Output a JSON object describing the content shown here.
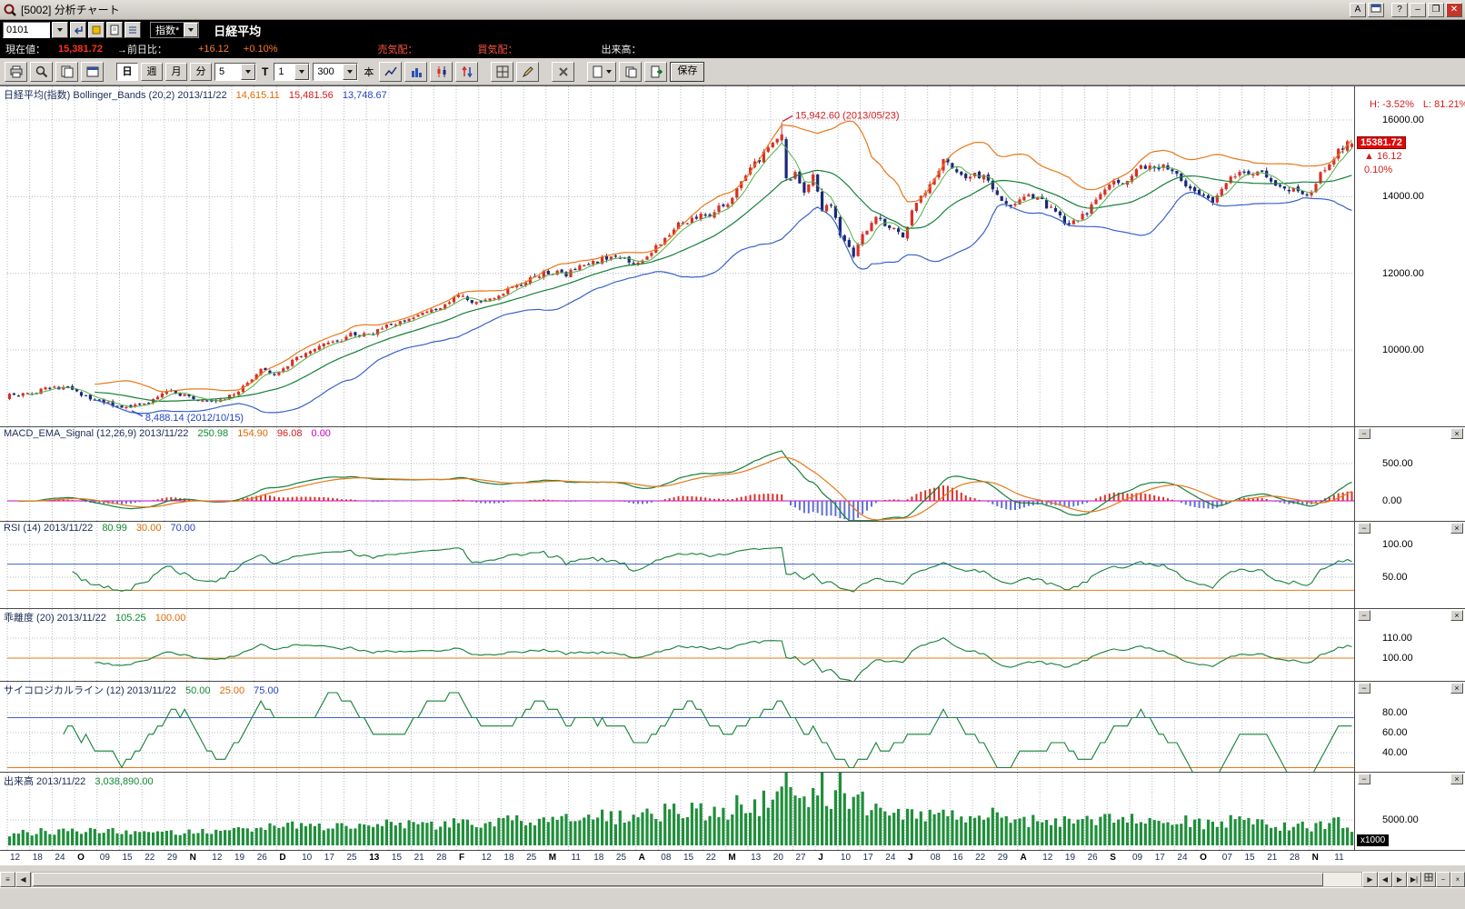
{
  "window": {
    "title": "[5002] 分析チャート",
    "btn_a": "A",
    "btn_help": "?",
    "btn_min": "–",
    "btn_max": "❐",
    "btn_close": "✕"
  },
  "icons": {
    "dropdown": "▼",
    "collapse": "−",
    "close_box": "×",
    "up_triangle": "▲",
    "scroll_left": "◀",
    "scroll_right": "▶",
    "scroll_end": "▶|",
    "grip": "≡"
  },
  "toolbar": {
    "code_value": "0101",
    "index_select": "指数*",
    "symbol": "日経平均"
  },
  "quote": {
    "label_current": "現在値：",
    "current": "15,381.72",
    "label_change": "→前日比：",
    "change": "+16.12",
    "change_pct": "+0.10%",
    "label_ask": "売気配：",
    "label_bid": "買気配：",
    "label_vol": "出来高："
  },
  "chartbar": {
    "tabs": [
      "日",
      "週",
      "月",
      "分"
    ],
    "sel_freq": "5",
    "t_label": "T",
    "sel_unit": "1",
    "sel_bars": "300",
    "bars_label": "本",
    "save_label": "保存"
  },
  "panels": {
    "main": {
      "title": "日経平均(指数) Bollinger_Bands (20,2) 2013/11/22",
      "v1": "14,615.11",
      "v2": "15,481.56",
      "v3": "13,748.67",
      "h_label": "H: -3.52%",
      "l_label": "L: 81.21%",
      "ann_high": "15,942.60 (2013/05/23)",
      "ann_low": "8,488.14 (2012/10/15)",
      "badge_price": "15381.72",
      "badge_change": "16.12",
      "badge_pct": "0.10%",
      "ticks": [
        [
          16000,
          "16000.00"
        ],
        [
          14000,
          "14000.00"
        ],
        [
          12000,
          "12000.00"
        ],
        [
          10000,
          "10000.00"
        ]
      ]
    },
    "macd": {
      "title": "MACD_EMA_Signal (12,26,9) 2013/11/22",
      "v1": "250.98",
      "v2": "154.90",
      "v3": "96.08",
      "v4": "0.00",
      "ticks": [
        [
          500,
          "500.00"
        ],
        [
          0,
          "0.00"
        ]
      ]
    },
    "rsi": {
      "title": "RSI (14) 2013/11/22",
      "v1": "80.99",
      "v2": "30.00",
      "v3": "70.00",
      "ticks": [
        [
          100,
          "100.00"
        ],
        [
          50,
          "50.00"
        ]
      ]
    },
    "kairi": {
      "title": "乖離度 (20) 2013/11/22",
      "v1": "105.25",
      "v2": "100.00",
      "ticks": [
        [
          110,
          "110.00"
        ],
        [
          100,
          "100.00"
        ]
      ]
    },
    "psycho": {
      "title": "サイコロジカルライン (12) 2013/11/22",
      "v1": "50.00",
      "v2": "25.00",
      "v3": "75.00",
      "ticks": [
        [
          80,
          "80.00"
        ],
        [
          60,
          "60.00"
        ],
        [
          40,
          "40.00"
        ]
      ]
    },
    "volume": {
      "title": "出来高 2013/11/22",
      "v1": "3,038,890.00",
      "x1000": "x1000",
      "ticks": [
        [
          5000,
          "5000.00"
        ]
      ]
    }
  },
  "chart_data": {
    "type": "candlestick+indicators",
    "instrument": "日経平均 (Nikkei 225 index)",
    "date_range": "2012/09 - 2013/11/22",
    "bars": 300,
    "last": {
      "close": 15381.72,
      "change": 16.12,
      "change_pct": 0.1
    },
    "high_annotation": {
      "bar": 172,
      "price": 15942.6,
      "date": "2013/05/23"
    },
    "low_annotation": {
      "bar": 27,
      "price": 8488.14,
      "date": "2012/10/15"
    },
    "indicators": {
      "bollinger": {
        "period": 20,
        "dev": 2,
        "last_mid": 14615.11,
        "last_upper": 15481.56,
        "last_lower": 13748.67
      },
      "macd": {
        "fast": 12,
        "slow": 26,
        "signal": 9,
        "last_macd": 250.98,
        "last_signal": 154.9,
        "last_hist": 96.08,
        "zero": 0.0
      },
      "rsi": {
        "period": 14,
        "last": 80.99,
        "level_low": 30.0,
        "level_high": 70.0
      },
      "kairi": {
        "period": 20,
        "last": 105.25,
        "level": 100.0
      },
      "psychological": {
        "period": 12,
        "last": 50.0,
        "level_low": 25.0,
        "level_high": 75.0
      },
      "volume_last_x1000": 3038890.0
    },
    "close_anchors": [
      [
        0,
        8810
      ],
      [
        5,
        8880
      ],
      [
        10,
        9050
      ],
      [
        14,
        8960
      ],
      [
        18,
        8720
      ],
      [
        22,
        8600
      ],
      [
        27,
        8490
      ],
      [
        32,
        8720
      ],
      [
        36,
        8950
      ],
      [
        40,
        8740
      ],
      [
        44,
        8620
      ],
      [
        48,
        8700
      ],
      [
        52,
        9050
      ],
      [
        56,
        9450
      ],
      [
        60,
        9400
      ],
      [
        64,
        9820
      ],
      [
        68,
        10080
      ],
      [
        72,
        10160
      ],
      [
        76,
        10390
      ],
      [
        80,
        10400
      ],
      [
        84,
        10600
      ],
      [
        88,
        10800
      ],
      [
        92,
        10920
      ],
      [
        96,
        11150
      ],
      [
        100,
        11370
      ],
      [
        104,
        11250
      ],
      [
        108,
        11400
      ],
      [
        112,
        11600
      ],
      [
        116,
        11900
      ],
      [
        120,
        12050
      ],
      [
        124,
        11950
      ],
      [
        128,
        12250
      ],
      [
        132,
        12350
      ],
      [
        136,
        12450
      ],
      [
        140,
        12250
      ],
      [
        144,
        12650
      ],
      [
        148,
        13200
      ],
      [
        152,
        13400
      ],
      [
        156,
        13550
      ],
      [
        160,
        13850
      ],
      [
        164,
        14600
      ],
      [
        168,
        15100
      ],
      [
        171,
        15450
      ],
      [
        172,
        15627
      ],
      [
        173,
        14483
      ],
      [
        175,
        14600
      ],
      [
        177,
        14150
      ],
      [
        179,
        14600
      ],
      [
        181,
        13600
      ],
      [
        183,
        13800
      ],
      [
        185,
        13000
      ],
      [
        188,
        12450
      ],
      [
        190,
        13000
      ],
      [
        193,
        13400
      ],
      [
        196,
        13250
      ],
      [
        199,
        13000
      ],
      [
        202,
        13850
      ],
      [
        205,
        14300
      ],
      [
        208,
        14950
      ],
      [
        211,
        14600
      ],
      [
        214,
        14500
      ],
      [
        217,
        14600
      ],
      [
        220,
        14000
      ],
      [
        223,
        13700
      ],
      [
        226,
        14050
      ],
      [
        229,
        13980
      ],
      [
        232,
        13650
      ],
      [
        235,
        13350
      ],
      [
        237,
        13340
      ],
      [
        240,
        13600
      ],
      [
        243,
        14100
      ],
      [
        246,
        14400
      ],
      [
        249,
        14450
      ],
      [
        252,
        14750
      ],
      [
        255,
        14800
      ],
      [
        258,
        14750
      ],
      [
        261,
        14450
      ],
      [
        264,
        14170
      ],
      [
        268,
        13860
      ],
      [
        271,
        14350
      ],
      [
        274,
        14600
      ],
      [
        278,
        14690
      ],
      [
        281,
        14400
      ],
      [
        284,
        14250
      ],
      [
        287,
        14090
      ],
      [
        290,
        14086
      ],
      [
        292,
        14600
      ],
      [
        294,
        14900
      ],
      [
        296,
        15150
      ],
      [
        298,
        15350
      ],
      [
        299,
        15382
      ]
    ],
    "volume_anchors": [
      [
        0,
        2200
      ],
      [
        20,
        2600
      ],
      [
        40,
        2400
      ],
      [
        55,
        3200
      ],
      [
        70,
        3600
      ],
      [
        85,
        3800
      ],
      [
        100,
        4200
      ],
      [
        115,
        4600
      ],
      [
        130,
        5000
      ],
      [
        145,
        5600
      ],
      [
        160,
        6200
      ],
      [
        170,
        7200
      ],
      [
        173,
        9600
      ],
      [
        178,
        7800
      ],
      [
        185,
        8400
      ],
      [
        192,
        6200
      ],
      [
        200,
        5200
      ],
      [
        210,
        5600
      ],
      [
        220,
        4800
      ],
      [
        230,
        4200
      ],
      [
        240,
        4600
      ],
      [
        250,
        4800
      ],
      [
        260,
        4400
      ],
      [
        268,
        3800
      ],
      [
        276,
        4400
      ],
      [
        284,
        3600
      ],
      [
        290,
        3400
      ],
      [
        294,
        4200
      ],
      [
        299,
        3039
      ]
    ],
    "x_labels": [
      "12",
      "18",
      "24",
      "O",
      "09",
      "15",
      "22",
      "29",
      "N",
      "12",
      "19",
      "26",
      "D",
      "10",
      "17",
      "25",
      "13",
      "15",
      "21",
      "28",
      "F",
      "12",
      "18",
      "25",
      "M",
      "11",
      "18",
      "25",
      "A",
      "08",
      "15",
      "22",
      "M",
      "13",
      "20",
      "27",
      "J",
      "10",
      "17",
      "24",
      "J",
      "08",
      "16",
      "22",
      "29",
      "A",
      "12",
      "19",
      "26",
      "S",
      "09",
      "17",
      "24",
      "O",
      "07",
      "15",
      "21",
      "28",
      "N",
      "11"
    ],
    "x_bold_idx": [
      3,
      8,
      12,
      16,
      20,
      24,
      28,
      32,
      36,
      40,
      45,
      49,
      53,
      58
    ],
    "colors": {
      "up": "#d83028",
      "down": "#1c2878",
      "band_upper": "#e87818",
      "band_mid": "#158038",
      "band_lower": "#3a62c8",
      "ma_fast": "#58b048",
      "macd": "#158038",
      "signal": "#e87818",
      "hist_pos": "#d83028",
      "hist_neg": "#6070d0",
      "zero": "#cc00cc",
      "line_green": "#158038",
      "level_blue": "#3a62c8",
      "level_orange": "#e87818",
      "volume": "#1f8f3a",
      "grid": "#b4b9c2"
    }
  }
}
